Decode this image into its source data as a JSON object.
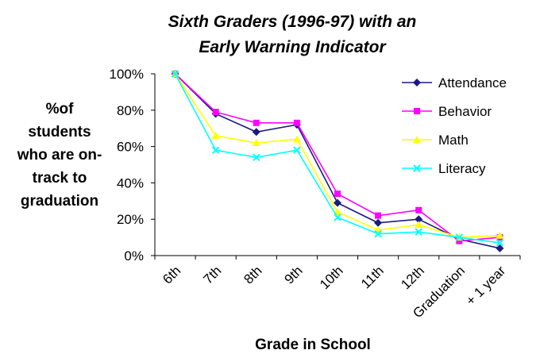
{
  "chart_data": {
    "type": "line",
    "title": [
      "Sixth Graders (1996-97) with an",
      "Early Warning Indicator"
    ],
    "ylabel": [
      "%of",
      "students",
      "who are on-",
      "track to",
      "graduation"
    ],
    "xlabel": "Grade in School",
    "categories": [
      "6th",
      "7th",
      "8th",
      "9th",
      "10th",
      "11th",
      "12th",
      "Graduation",
      "+ 1 year"
    ],
    "yticks": [
      "0%",
      "20%",
      "40%",
      "60%",
      "80%",
      "100%"
    ],
    "ylim": [
      0,
      100
    ],
    "grid": false,
    "legend_position": "top-right",
    "series": [
      {
        "name": "Attendance",
        "color": "#1a1a80",
        "marker": "diamond",
        "values": [
          100,
          78,
          68,
          72,
          29,
          18,
          20,
          9,
          4
        ]
      },
      {
        "name": "Behavior",
        "color": "#ff00ff",
        "marker": "square",
        "values": [
          100,
          79,
          73,
          73,
          34,
          22,
          25,
          8,
          10
        ]
      },
      {
        "name": "Math",
        "color": "#ffff00",
        "marker": "triangle",
        "values": [
          100,
          66,
          62,
          64,
          24,
          14,
          17,
          10,
          11
        ]
      },
      {
        "name": "Literacy",
        "color": "#00ffff",
        "marker": "x",
        "values": [
          100,
          58,
          54,
          58,
          21,
          12,
          13,
          10,
          7
        ]
      }
    ]
  }
}
